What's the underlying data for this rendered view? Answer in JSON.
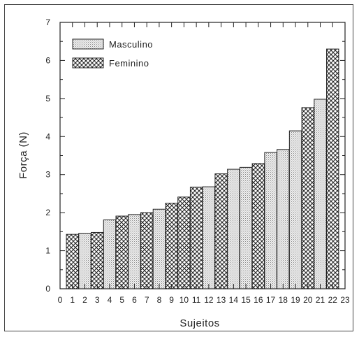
{
  "chart_data": {
    "type": "bar",
    "xlabel": "Sujeitos",
    "ylabel": "Força (N)",
    "xlim": [
      0,
      23
    ],
    "ylim": [
      0,
      7
    ],
    "x_ticks": [
      "0",
      "1",
      "2",
      "3",
      "4",
      "5",
      "6",
      "7",
      "8",
      "9",
      "10",
      "11",
      "12",
      "13",
      "14",
      "15",
      "16",
      "17",
      "18",
      "19",
      "20",
      "21",
      "22",
      "23"
    ],
    "y_ticks": [
      "0",
      "1",
      "2",
      "3",
      "4",
      "5",
      "6",
      "7"
    ],
    "legend": {
      "placement": "top-left",
      "entries": [
        "Masculino",
        "Feminino"
      ]
    },
    "series": [
      {
        "name": "Masculino",
        "pattern": "dots"
      },
      {
        "name": "Feminino",
        "pattern": "crosshatch"
      }
    ],
    "bars": [
      {
        "x": 1,
        "value": 1.43,
        "series": "Feminino"
      },
      {
        "x": 2,
        "value": 1.46,
        "series": "Masculino"
      },
      {
        "x": 3,
        "value": 1.48,
        "series": "Feminino"
      },
      {
        "x": 4,
        "value": 1.81,
        "series": "Masculino"
      },
      {
        "x": 5,
        "value": 1.91,
        "series": "Feminino"
      },
      {
        "x": 6,
        "value": 1.95,
        "series": "Masculino"
      },
      {
        "x": 7,
        "value": 2.0,
        "series": "Feminino"
      },
      {
        "x": 8,
        "value": 2.09,
        "series": "Masculino"
      },
      {
        "x": 9,
        "value": 2.25,
        "series": "Feminino"
      },
      {
        "x": 10,
        "value": 2.41,
        "series": "Feminino"
      },
      {
        "x": 11,
        "value": 2.67,
        "series": "Feminino"
      },
      {
        "x": 12,
        "value": 2.68,
        "series": "Masculino"
      },
      {
        "x": 13,
        "value": 3.02,
        "series": "Feminino"
      },
      {
        "x": 14,
        "value": 3.14,
        "series": "Masculino"
      },
      {
        "x": 15,
        "value": 3.19,
        "series": "Masculino"
      },
      {
        "x": 16,
        "value": 3.29,
        "series": "Feminino"
      },
      {
        "x": 17,
        "value": 3.58,
        "series": "Masculino"
      },
      {
        "x": 18,
        "value": 3.66,
        "series": "Masculino"
      },
      {
        "x": 19,
        "value": 4.15,
        "series": "Masculino"
      },
      {
        "x": 20,
        "value": 4.76,
        "series": "Feminino"
      },
      {
        "x": 21,
        "value": 4.98,
        "series": "Masculino"
      },
      {
        "x": 22,
        "value": 6.3,
        "series": "Feminino"
      }
    ]
  }
}
